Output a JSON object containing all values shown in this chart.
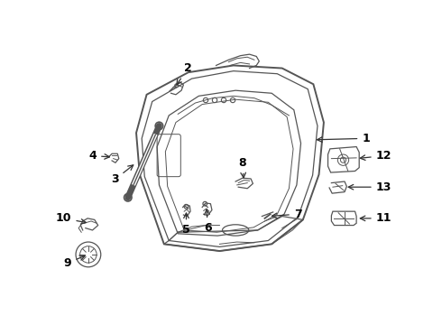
{
  "background_color": "#ffffff",
  "line_color": "#555555",
  "label_color": "#000000",
  "figsize": [
    4.9,
    3.6
  ],
  "dpi": 100,
  "xlim": [
    0,
    490
  ],
  "ylim": [
    0,
    360
  ]
}
